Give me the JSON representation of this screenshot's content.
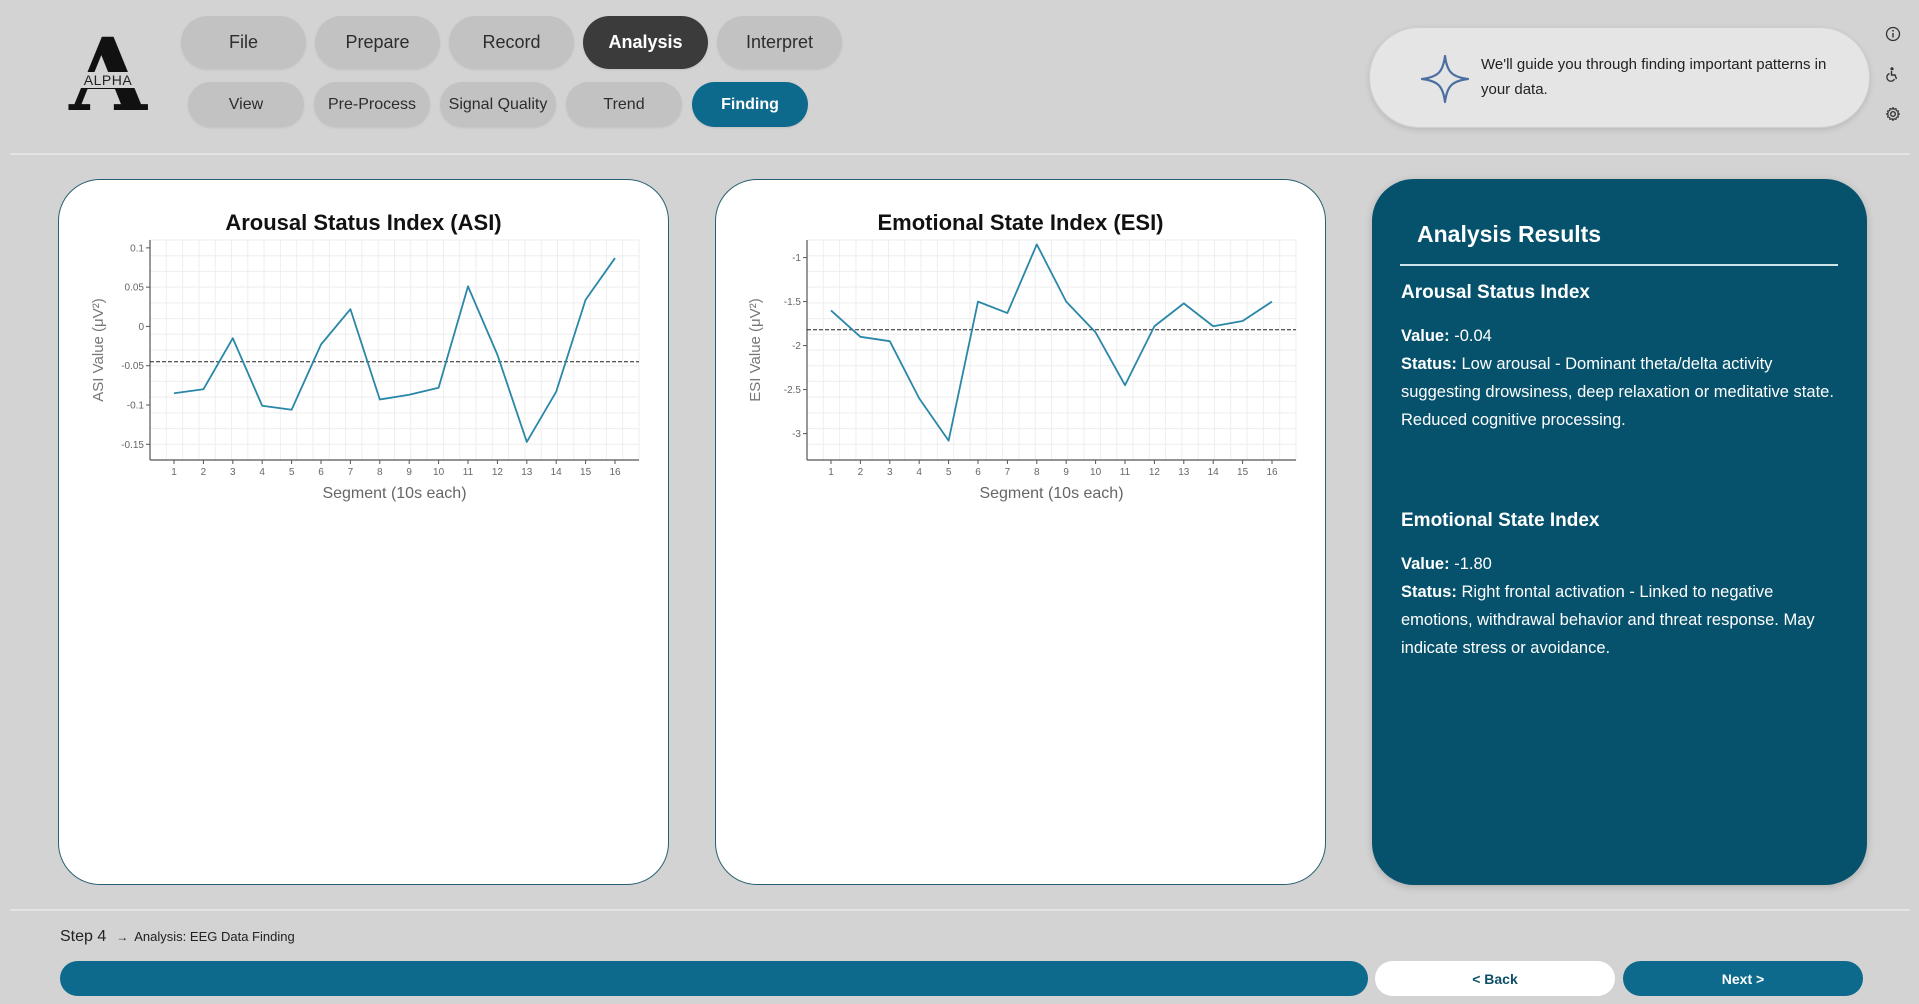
{
  "logo": {
    "letter": "A",
    "word": "ALPHA"
  },
  "nav": {
    "top": [
      {
        "label": "File",
        "state": "normal"
      },
      {
        "label": "Prepare",
        "state": "normal"
      },
      {
        "label": "Record",
        "state": "normal"
      },
      {
        "label": "Analysis",
        "state": "active"
      },
      {
        "label": "Interpret",
        "state": "normal"
      }
    ],
    "bottom": [
      {
        "label": "View",
        "state": "normal"
      },
      {
        "label": "Pre-Process",
        "state": "normal"
      },
      {
        "label": "Signal Quality",
        "state": "normal"
      },
      {
        "label": "Trend",
        "state": "normal"
      },
      {
        "label": "Finding",
        "state": "active"
      }
    ]
  },
  "guide": {
    "text": "We'll guide you through finding important patterns in your data."
  },
  "side_icons": [
    "info-icon",
    "accessibility-icon",
    "settings-icon"
  ],
  "chart_data": [
    {
      "type": "line",
      "title": "Arousal Status Index (ASI)",
      "xlabel": "Segment (10s each)",
      "ylabel": "ASI Value (μV²)",
      "x": [
        1,
        2,
        3,
        4,
        5,
        6,
        7,
        8,
        9,
        10,
        11,
        12,
        13,
        14,
        15,
        16
      ],
      "values": [
        -0.085,
        -0.08,
        -0.015,
        -0.101,
        -0.106,
        -0.023,
        0.022,
        -0.093,
        -0.087,
        -0.078,
        0.051,
        -0.036,
        -0.147,
        -0.083,
        0.034,
        0.087
      ],
      "reference_line": -0.045,
      "ylim": [
        -0.17,
        0.11
      ],
      "yticks": [
        0.1,
        0.05,
        0,
        -0.05,
        -0.1,
        -0.15
      ],
      "ytick_labels": [
        "0.1",
        "0.05",
        "0",
        "-0.05",
        "-0.1",
        "-0.15"
      ],
      "color": "#2a87a8"
    },
    {
      "type": "line",
      "title": "Emotional State Index (ESI)",
      "xlabel": "Segment (10s each)",
      "ylabel": "ESI Value (μV²)",
      "x": [
        1,
        2,
        3,
        4,
        5,
        6,
        7,
        8,
        9,
        10,
        11,
        12,
        13,
        14,
        15,
        16
      ],
      "values": [
        -1.6,
        -1.9,
        -1.95,
        -2.6,
        -3.08,
        -1.5,
        -1.63,
        -0.85,
        -1.5,
        -1.85,
        -2.45,
        -1.78,
        -1.52,
        -1.78,
        -1.72,
        -1.5
      ],
      "reference_line": -1.82,
      "ylim": [
        -3.3,
        -0.8
      ],
      "yticks": [
        -1,
        -1.5,
        -2,
        -2.5,
        -3
      ],
      "ytick_labels": [
        "-1",
        "-1.5",
        "-2",
        "-2.5",
        "-3"
      ],
      "color": "#2a87a8"
    }
  ],
  "results": {
    "heading": "Analysis Results",
    "asi": {
      "title": "Arousal Status Index",
      "value_label": "Value:",
      "value": " -0.04",
      "status_label": "Status:",
      "status": " Low arousal - Dominant theta/delta activity suggesting drowsiness, deep relaxation or meditative state. Reduced cognitive processing."
    },
    "esi": {
      "title": "Emotional State Index",
      "value_label": "Value:",
      "value": " -1.80",
      "status_label": "Status:",
      "status": " Right frontal activation - Linked to negative emotions, withdrawal behavior and threat response. May indicate stress or avoidance."
    }
  },
  "footer": {
    "step": "Step 4",
    "arrow": "→",
    "description": "Analysis: EEG Data Finding",
    "back_label": "< Back",
    "next_label": "Next >"
  }
}
